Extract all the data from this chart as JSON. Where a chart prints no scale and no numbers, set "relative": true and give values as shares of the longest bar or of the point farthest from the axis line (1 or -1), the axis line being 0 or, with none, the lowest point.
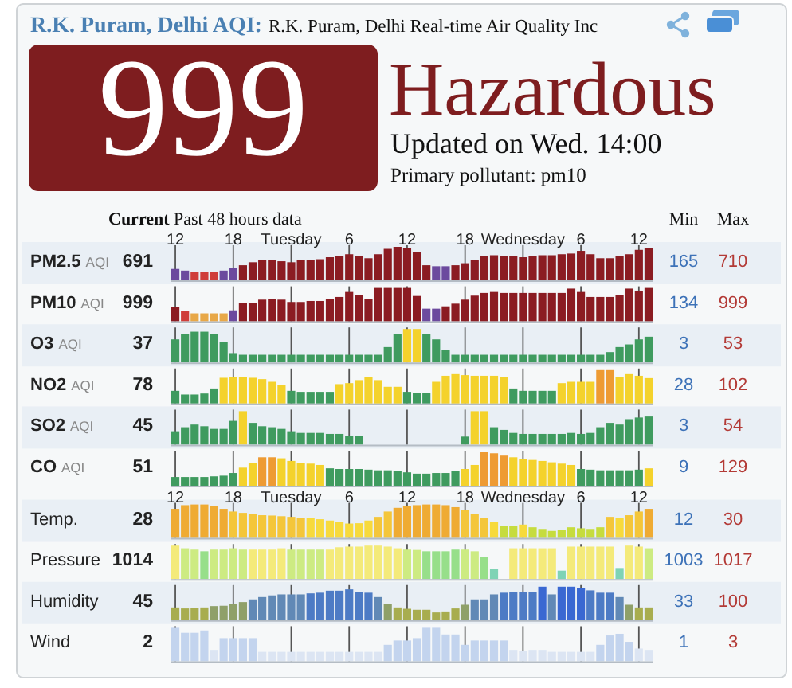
{
  "chart_data": [
    {
      "type": "other",
      "title": "R.K. Puram, Delhi AQI:",
      "subtitle": "R.K. Puram, Delhi Real-time Air Quality Inc",
      "color": "#7e1d1f",
      "annotations": [
        "999",
        "Hazardous",
        "Updated on Wed. 14:00",
        "Primary pollutant: pm10",
        "Current",
        "Past 48 hours data",
        "Min",
        "Max"
      ]
    },
    {
      "type": "bar",
      "relative": true,
      "title": "PM2.5 AQI",
      "grid": "x",
      "tick_labels": "x",
      "annotations": [
        "691",
        "165",
        "710"
      ],
      "categories": [
        "12",
        null,
        null,
        null,
        null,
        null,
        "18",
        null,
        null,
        null,
        null,
        null,
        "Tuesday",
        null,
        null,
        null,
        null,
        null,
        "6",
        null,
        null,
        null,
        null,
        null,
        "12",
        null,
        null,
        null,
        null,
        null,
        "18",
        null,
        null,
        null,
        null,
        null,
        "Wednesday",
        null,
        null,
        null,
        null,
        null,
        "6",
        null,
        null,
        null,
        null,
        null,
        "12",
        null
      ],
      "values": [
        0.34,
        0.29,
        0.26,
        0.26,
        0.26,
        0.29,
        0.38,
        0.45,
        0.54,
        0.6,
        0.6,
        0.57,
        0.54,
        0.6,
        0.6,
        0.63,
        0.69,
        0.72,
        0.78,
        0.72,
        0.66,
        0.78,
        0.94,
        1,
        0.97,
        0.85,
        0.45,
        0.42,
        0.42,
        0.45,
        0.51,
        0.6,
        0.72,
        0.75,
        0.72,
        0.72,
        0.69,
        0.72,
        0.75,
        0.75,
        0.78,
        0.8,
        0.88,
        0.78,
        0.66,
        0.66,
        0.72,
        0.78,
        0.91,
        0.97
      ],
      "colors": [
        "#6c4a9e",
        "#6c4a9e",
        "#cf3d3a",
        "#cf3d3a",
        "#cf3d3a",
        "#6c4a9e",
        "#6c4a9e",
        "#8b1c22",
        "#8b1c22",
        "#8b1c22",
        "#8b1c22",
        "#8b1c22",
        "#8b1c22",
        "#8b1c22",
        "#8b1c22",
        "#8b1c22",
        "#8b1c22",
        "#8b1c22",
        "#8b1c22",
        "#8b1c22",
        "#8b1c22",
        "#8b1c22",
        "#8b1c22",
        "#8b1c22",
        "#8b1c22",
        "#8b1c22",
        "#8b1c22",
        "#6c4a9e",
        "#6c4a9e",
        "#8b1c22",
        "#8b1c22",
        "#8b1c22",
        "#8b1c22",
        "#8b1c22",
        "#8b1c22",
        "#8b1c22",
        "#8b1c22",
        "#8b1c22",
        "#8b1c22",
        "#8b1c22",
        "#8b1c22",
        "#8b1c22",
        "#8b1c22",
        "#8b1c22",
        "#8b1c22",
        "#8b1c22",
        "#8b1c22",
        "#8b1c22",
        "#8b1c22",
        "#8b1c22"
      ]
    },
    {
      "type": "bar",
      "relative": true,
      "title": "PM10 AQI",
      "grid": "x",
      "annotations": [
        "999",
        "134",
        "999"
      ],
      "categories": [
        null,
        null,
        null,
        null,
        null,
        null,
        null,
        null,
        null,
        null,
        null,
        null,
        null,
        null,
        null,
        null,
        null,
        null,
        null,
        null,
        null,
        null,
        null,
        null,
        null,
        null,
        null,
        null,
        null,
        null,
        null,
        null,
        null,
        null,
        null,
        null,
        null,
        null,
        null,
        null,
        null,
        null,
        null,
        null,
        null,
        null,
        null,
        null,
        null,
        null
      ],
      "values": [
        0.42,
        0.3,
        0.24,
        0.24,
        0.24,
        0.24,
        0.33,
        0.55,
        0.55,
        0.65,
        0.68,
        0.65,
        0.58,
        0.58,
        0.61,
        0.61,
        0.68,
        0.73,
        0.88,
        0.8,
        0.68,
        1,
        1,
        1,
        1,
        0.76,
        0.38,
        0.38,
        0.45,
        0.53,
        0.65,
        0.77,
        0.85,
        0.88,
        0.85,
        0.85,
        0.85,
        0.85,
        0.85,
        0.85,
        0.85,
        0.98,
        0.88,
        0.73,
        0.73,
        0.73,
        0.8,
        0.98,
        0.92,
        1
      ],
      "colors": [
        "#8b1c22",
        "#cf3d3a",
        "#e8a848",
        "#e8a848",
        "#e8a848",
        "#e8a848",
        "#6c4a9e",
        "#8b1c22",
        "#8b1c22",
        "#8b1c22",
        "#8b1c22",
        "#8b1c22",
        "#8b1c22",
        "#8b1c22",
        "#8b1c22",
        "#8b1c22",
        "#8b1c22",
        "#8b1c22",
        "#8b1c22",
        "#8b1c22",
        "#8b1c22",
        "#8b1c22",
        "#8b1c22",
        "#8b1c22",
        "#8b1c22",
        "#8b1c22",
        "#6c4a9e",
        "#6c4a9e",
        "#8b1c22",
        "#8b1c22",
        "#8b1c22",
        "#8b1c22",
        "#8b1c22",
        "#8b1c22",
        "#8b1c22",
        "#8b1c22",
        "#8b1c22",
        "#8b1c22",
        "#8b1c22",
        "#8b1c22",
        "#8b1c22",
        "#8b1c22",
        "#8b1c22",
        "#8b1c22",
        "#8b1c22",
        "#8b1c22",
        "#8b1c22",
        "#8b1c22",
        "#8b1c22",
        "#8b1c22"
      ]
    },
    {
      "type": "bar",
      "relative": true,
      "title": "O3 AQI",
      "grid": "x",
      "annotations": [
        "37",
        "3",
        "53"
      ],
      "categories": [
        null,
        null,
        null,
        null,
        null,
        null,
        null,
        null,
        null,
        null,
        null,
        null,
        null,
        null,
        null,
        null,
        null,
        null,
        null,
        null,
        null,
        null,
        null,
        null,
        null,
        null,
        null,
        null,
        null,
        null,
        null,
        null,
        null,
        null,
        null,
        null,
        null,
        null,
        null,
        null,
        null,
        null,
        null,
        null,
        null,
        null,
        null,
        null,
        null,
        null
      ],
      "values": [
        0.69,
        0.85,
        0.92,
        0.92,
        0.85,
        0.62,
        0.28,
        0.23,
        0.23,
        0.23,
        0.23,
        0.23,
        0.23,
        0.23,
        0.23,
        0.23,
        0.23,
        0.23,
        0.23,
        0.23,
        0.23,
        0.23,
        0.46,
        0.85,
        1,
        1,
        0.85,
        0.69,
        0.38,
        0.23,
        0.23,
        0.23,
        0.23,
        0.23,
        0.23,
        0.23,
        0.23,
        0.23,
        0.23,
        0.23,
        0.23,
        0.23,
        0.23,
        0.23,
        0.23,
        0.31,
        0.46,
        0.54,
        0.69,
        0.77
      ],
      "colors": [
        "#3f9b5f",
        "#3f9b5f",
        "#3f9b5f",
        "#3f9b5f",
        "#3f9b5f",
        "#3f9b5f",
        "#3f9b5f",
        "#3f9b5f",
        "#3f9b5f",
        "#3f9b5f",
        "#3f9b5f",
        "#3f9b5f",
        "#3f9b5f",
        "#3f9b5f",
        "#3f9b5f",
        "#3f9b5f",
        "#3f9b5f",
        "#3f9b5f",
        "#3f9b5f",
        "#3f9b5f",
        "#3f9b5f",
        "#3f9b5f",
        "#3f9b5f",
        "#3f9b5f",
        "#f4d22c",
        "#f4d22c",
        "#3f9b5f",
        "#3f9b5f",
        "#3f9b5f",
        "#3f9b5f",
        "#3f9b5f",
        "#3f9b5f",
        "#3f9b5f",
        "#3f9b5f",
        "#3f9b5f",
        "#3f9b5f",
        "#3f9b5f",
        "#3f9b5f",
        "#3f9b5f",
        "#3f9b5f",
        "#3f9b5f",
        "#3f9b5f",
        "#3f9b5f",
        "#3f9b5f",
        "#3f9b5f",
        "#3f9b5f",
        "#3f9b5f",
        "#3f9b5f",
        "#3f9b5f",
        "#3f9b5f"
      ]
    },
    {
      "type": "bar",
      "relative": true,
      "title": "NO2 AQI",
      "grid": "x",
      "annotations": [
        "78",
        "28",
        "102"
      ],
      "categories": [
        null,
        null,
        null,
        null,
        null,
        null,
        null,
        null,
        null,
        null,
        null,
        null,
        null,
        null,
        null,
        null,
        null,
        null,
        null,
        null,
        null,
        null,
        null,
        null,
        null,
        null,
        null,
        null,
        null,
        null,
        null,
        null,
        null,
        null,
        null,
        null,
        null,
        null,
        null,
        null,
        null,
        null,
        null,
        null,
        null,
        null,
        null,
        null,
        null,
        null
      ],
      "values": [
        0.38,
        0.27,
        0.27,
        0.3,
        0.45,
        0.77,
        0.8,
        0.8,
        0.77,
        0.73,
        0.65,
        0.55,
        0.38,
        0.35,
        0.35,
        0.35,
        0.35,
        0.58,
        0.61,
        0.7,
        0.8,
        0.7,
        0.5,
        0.5,
        0.35,
        0.32,
        0.32,
        0.65,
        0.83,
        0.88,
        0.85,
        0.83,
        0.83,
        0.83,
        0.8,
        0.45,
        0.38,
        0.38,
        0.38,
        0.38,
        0.61,
        0.65,
        0.65,
        0.65,
        1,
        1,
        0.8,
        0.88,
        0.83,
        0.76
      ],
      "colors": [
        "#3f9b5f",
        "#3f9b5f",
        "#3f9b5f",
        "#3f9b5f",
        "#3f9b5f",
        "#f4d22c",
        "#f4d22c",
        "#f4d22c",
        "#f4d22c",
        "#f4d22c",
        "#f4d22c",
        "#f4d22c",
        "#3f9b5f",
        "#3f9b5f",
        "#3f9b5f",
        "#3f9b5f",
        "#3f9b5f",
        "#f4d22c",
        "#f4d22c",
        "#f4d22c",
        "#f4d22c",
        "#f4d22c",
        "#f4d22c",
        "#f4d22c",
        "#3f9b5f",
        "#3f9b5f",
        "#3f9b5f",
        "#f4d22c",
        "#f4d22c",
        "#f4d22c",
        "#f4d22c",
        "#f4d22c",
        "#f4d22c",
        "#f4d22c",
        "#f4d22c",
        "#3f9b5f",
        "#3f9b5f",
        "#3f9b5f",
        "#3f9b5f",
        "#3f9b5f",
        "#f4d22c",
        "#f4d22c",
        "#f4d22c",
        "#f4d22c",
        "#ee9b33",
        "#ee9b33",
        "#f4d22c",
        "#f4d22c",
        "#f4d22c",
        "#f4d22c"
      ]
    },
    {
      "type": "bar",
      "relative": true,
      "title": "SO2 AQI",
      "grid": "x",
      "annotations": [
        "45",
        "3",
        "54"
      ],
      "categories": [
        null,
        null,
        null,
        null,
        null,
        null,
        null,
        null,
        null,
        null,
        null,
        null,
        null,
        null,
        null,
        null,
        null,
        null,
        null,
        null,
        null,
        null,
        null,
        null,
        null,
        null,
        null,
        null,
        null,
        null,
        null,
        null,
        null,
        null,
        null,
        null,
        null,
        null,
        null,
        null,
        null,
        null,
        null,
        null,
        null,
        null,
        null,
        null,
        null,
        null
      ],
      "values": [
        0.4,
        0.52,
        0.6,
        0.55,
        0.47,
        0.47,
        0.71,
        1,
        0.65,
        0.55,
        0.52,
        0.47,
        0.4,
        0.35,
        0.35,
        0.35,
        0.32,
        0.32,
        0.27,
        0.27,
        null,
        null,
        null,
        null,
        null,
        null,
        null,
        null,
        null,
        null,
        0.24,
        1,
        1,
        0.52,
        0.44,
        0.35,
        0.32,
        0.32,
        0.32,
        0.32,
        0.32,
        0.35,
        0.32,
        0.35,
        0.52,
        0.65,
        0.6,
        0.76,
        0.81,
        0.84
      ],
      "colors": [
        "#3f9b5f",
        "#3f9b5f",
        "#3f9b5f",
        "#3f9b5f",
        "#3f9b5f",
        "#3f9b5f",
        "#3f9b5f",
        "#f4d22c",
        "#3f9b5f",
        "#3f9b5f",
        "#3f9b5f",
        "#3f9b5f",
        "#3f9b5f",
        "#3f9b5f",
        "#3f9b5f",
        "#3f9b5f",
        "#3f9b5f",
        "#3f9b5f",
        "#3f9b5f",
        "#3f9b5f",
        null,
        null,
        null,
        null,
        null,
        null,
        null,
        null,
        null,
        null,
        "#3f9b5f",
        "#f4d22c",
        "#f4d22c",
        "#3f9b5f",
        "#3f9b5f",
        "#3f9b5f",
        "#3f9b5f",
        "#3f9b5f",
        "#3f9b5f",
        "#3f9b5f",
        "#3f9b5f",
        "#3f9b5f",
        "#3f9b5f",
        "#3f9b5f",
        "#3f9b5f",
        "#3f9b5f",
        "#3f9b5f",
        "#3f9b5f",
        "#3f9b5f",
        "#3f9b5f"
      ]
    },
    {
      "type": "bar",
      "relative": true,
      "title": "CO AQI",
      "grid": "x",
      "annotations": [
        "51",
        "9",
        "129"
      ],
      "categories": [
        null,
        null,
        null,
        null,
        null,
        null,
        null,
        null,
        null,
        null,
        null,
        null,
        null,
        null,
        null,
        null,
        null,
        null,
        null,
        null,
        null,
        null,
        null,
        null,
        null,
        null,
        null,
        null,
        null,
        null,
        null,
        null,
        null,
        null,
        null,
        null,
        null,
        null,
        null,
        null,
        null,
        null,
        null,
        null,
        null,
        null,
        null,
        null,
        null,
        null
      ],
      "values": [
        0.26,
        0.26,
        0.26,
        0.26,
        0.28,
        0.3,
        0.38,
        0.54,
        0.69,
        0.85,
        0.85,
        0.82,
        0.74,
        0.69,
        0.66,
        0.62,
        0.52,
        0.5,
        0.5,
        0.5,
        0.48,
        0.46,
        0.46,
        0.44,
        0.4,
        0.36,
        0.36,
        0.38,
        0.38,
        0.44,
        0.5,
        0.62,
        1,
        0.97,
        0.9,
        0.85,
        0.8,
        0.77,
        0.74,
        0.7,
        0.66,
        0.62,
        0.5,
        0.48,
        0.46,
        0.46,
        0.46,
        0.46,
        0.48,
        0.52
      ],
      "colors": [
        "#3f9b5f",
        "#3f9b5f",
        "#3f9b5f",
        "#3f9b5f",
        "#3f9b5f",
        "#3f9b5f",
        "#3f9b5f",
        "#f4d22c",
        "#f4d22c",
        "#ee9b33",
        "#ee9b33",
        "#f4d22c",
        "#f4d22c",
        "#f4d22c",
        "#f4d22c",
        "#f4d22c",
        "#3f9b5f",
        "#3f9b5f",
        "#3f9b5f",
        "#3f9b5f",
        "#3f9b5f",
        "#3f9b5f",
        "#3f9b5f",
        "#3f9b5f",
        "#3f9b5f",
        "#3f9b5f",
        "#3f9b5f",
        "#3f9b5f",
        "#3f9b5f",
        "#3f9b5f",
        "#f4d22c",
        "#f4d22c",
        "#ee9b33",
        "#ee9b33",
        "#ee9b33",
        "#f4d22c",
        "#f4d22c",
        "#f4d22c",
        "#f4d22c",
        "#f4d22c",
        "#f4d22c",
        "#f4d22c",
        "#3f9b5f",
        "#3f9b5f",
        "#3f9b5f",
        "#3f9b5f",
        "#3f9b5f",
        "#3f9b5f",
        "#3f9b5f",
        "#f4d22c"
      ]
    },
    {
      "type": "bar",
      "relative": true,
      "title": "Temp.",
      "grid": "x",
      "tick_labels": "x",
      "annotations": [
        "28",
        "12",
        "30"
      ],
      "categories": [
        "12",
        null,
        null,
        null,
        null,
        null,
        "18",
        null,
        null,
        null,
        null,
        null,
        "Tuesday",
        null,
        null,
        null,
        null,
        null,
        "6",
        null,
        null,
        null,
        null,
        null,
        "12",
        null,
        null,
        null,
        null,
        null,
        "18",
        null,
        null,
        null,
        null,
        null,
        "Wednesday",
        null,
        null,
        null,
        null,
        null,
        "6",
        null,
        null,
        null,
        null,
        null,
        "12",
        null
      ],
      "values": [
        0.87,
        0.98,
        1,
        1,
        0.95,
        0.87,
        0.79,
        0.75,
        0.71,
        0.68,
        0.67,
        0.65,
        0.63,
        0.6,
        0.59,
        0.56,
        0.52,
        0.48,
        0.43,
        0.44,
        0.52,
        0.63,
        0.79,
        0.9,
        0.95,
        0.98,
        1,
        1,
        0.98,
        0.92,
        0.83,
        0.71,
        0.6,
        0.48,
        0.37,
        0.37,
        0.4,
        0.32,
        0.27,
        0.21,
        0.24,
        0.32,
        0.29,
        0.27,
        0.32,
        0.63,
        0.59,
        0.68,
        0.79,
        0.87
      ],
      "colors": [
        "#efab33",
        "#efab33",
        "#efab33",
        "#efab33",
        "#efab33",
        "#efab33",
        "#f4c63a",
        "#f4c63a",
        "#f4c63a",
        "#f4c63a",
        "#f4c63a",
        "#f4c63a",
        "#f4c63a",
        "#f4c63a",
        "#f7da3c",
        "#f7da3c",
        "#f7da3c",
        "#f7da3c",
        "#f7da3c",
        "#f7da3c",
        "#f7da3c",
        "#f4c63a",
        "#f4c63a",
        "#efab33",
        "#efab33",
        "#efab33",
        "#efab33",
        "#efab33",
        "#efab33",
        "#efab33",
        "#f4c63a",
        "#f4c63a",
        "#f4c63a",
        "#f7da3c",
        "#c6dc3e",
        "#c6dc3e",
        "#f7da3c",
        "#c6dc3e",
        "#c6dc3e",
        "#c6dc3e",
        "#c6dc3e",
        "#c6dc3e",
        "#c6dc3e",
        "#c6dc3e",
        "#c6dc3e",
        "#f4c63a",
        "#f7da3c",
        "#f4c63a",
        "#f4c63a",
        "#efab33"
      ]
    },
    {
      "type": "bar",
      "relative": true,
      "title": "Pressure",
      "grid": "x",
      "annotations": [
        "1014",
        "1003",
        "1017"
      ],
      "categories": [
        null,
        null,
        null,
        null,
        null,
        null,
        null,
        null,
        null,
        null,
        null,
        null,
        null,
        null,
        null,
        null,
        null,
        null,
        null,
        null,
        null,
        null,
        null,
        null,
        null,
        null,
        null,
        null,
        null,
        null,
        null,
        null,
        null,
        null,
        null,
        null,
        null,
        null,
        null,
        null,
        null,
        null,
        null,
        null,
        null,
        null,
        null,
        null,
        null,
        null
      ],
      "values": [
        1,
        0.92,
        0.88,
        0.83,
        0.88,
        0.88,
        0.92,
        0.88,
        0.88,
        0.88,
        0.88,
        0.92,
        0.88,
        0.88,
        0.88,
        0.88,
        0.88,
        0.95,
        0.97,
        0.97,
        1,
        1,
        0.97,
        0.92,
        0.88,
        0.87,
        0.83,
        0.83,
        0.83,
        0.88,
        0.88,
        0.83,
        0.67,
        0.3,
        null,
        0.92,
        0.92,
        0.92,
        0.92,
        0.92,
        0.25,
        0.97,
        0.97,
        0.97,
        0.97,
        0.97,
        0.33,
        1,
        0.97,
        0.92
      ],
      "colors": [
        "#f4ea7a",
        "#cdeb82",
        "#cdeb82",
        "#97df8a",
        "#cdeb82",
        "#cdeb82",
        "#cdeb82",
        "#cdeb82",
        "#f4ea7a",
        "#f4ea7a",
        "#f4ea7a",
        "#f4ea7a",
        "#cdeb82",
        "#cdeb82",
        "#cdeb82",
        "#cdeb82",
        "#f4ea7a",
        "#f4ea7a",
        "#f4ea7a",
        "#f4ea7a",
        "#f4ea7a",
        "#f4ea7a",
        "#f4ea7a",
        "#f4ea7a",
        "#cdeb82",
        "#cdeb82",
        "#97df8a",
        "#97df8a",
        "#97df8a",
        "#97df8a",
        "#cdeb82",
        "#cdeb82",
        "#97df8a",
        "#7fd3b5",
        null,
        "#f4ea7a",
        "#f4ea7a",
        "#f4ea7a",
        "#f4ea7a",
        "#f4ea7a",
        "#7fd3b5",
        "#f4ea7a",
        "#f4ea7a",
        "#f4ea7a",
        "#f4ea7a",
        "#f4ea7a",
        "#7fd3b5",
        "#f4ea7a",
        "#f4ea7a",
        "#cdeb82"
      ]
    },
    {
      "type": "bar",
      "relative": true,
      "title": "Humidity",
      "grid": "x",
      "annotations": [
        "45",
        "33",
        "100"
      ],
      "categories": [
        null,
        null,
        null,
        null,
        null,
        null,
        null,
        null,
        null,
        null,
        null,
        null,
        null,
        null,
        null,
        null,
        null,
        null,
        null,
        null,
        null,
        null,
        null,
        null,
        null,
        null,
        null,
        null,
        null,
        null,
        null,
        null,
        null,
        null,
        null,
        null,
        null,
        null,
        null,
        null,
        null,
        null,
        null,
        null,
        null,
        null,
        null,
        null,
        null,
        null
      ],
      "values": [
        0.38,
        0.35,
        0.37,
        0.38,
        0.42,
        0.43,
        0.49,
        0.54,
        0.62,
        0.69,
        0.74,
        0.77,
        0.77,
        0.77,
        0.8,
        0.82,
        0.88,
        0.88,
        0.92,
        0.85,
        0.82,
        0.69,
        0.49,
        0.38,
        0.34,
        0.31,
        0.31,
        0.23,
        0.26,
        0.35,
        0.46,
        0.62,
        0.62,
        0.77,
        0.82,
        0.85,
        0.85,
        0.85,
        1,
        0.77,
        1,
        1,
        0.97,
        0.89,
        0.82,
        0.82,
        0.69,
        0.46,
        0.38,
        0.38
      ],
      "colors": [
        "#a8ad4f",
        "#a8ad4f",
        "#a8ad4f",
        "#a8ad4f",
        "#8fa069",
        "#8fa069",
        "#8fa069",
        "#8fa069",
        "#6189b6",
        "#6189b6",
        "#6189b6",
        "#6189b6",
        "#6189b6",
        "#6189b6",
        "#4d7bc5",
        "#4d7bc5",
        "#4d7bc5",
        "#4d7bc5",
        "#4d7bc5",
        "#4d7bc5",
        "#4d7bc5",
        "#6189b6",
        "#8fa069",
        "#a8ad4f",
        "#a8ad4f",
        "#a8ad4f",
        "#a8ad4f",
        "#a8ad4f",
        "#a8ad4f",
        "#a8ad4f",
        "#8fa069",
        "#6189b6",
        "#6189b6",
        "#6189b6",
        "#4d7bc5",
        "#4d7bc5",
        "#4d7bc5",
        "#4d7bc5",
        "#3a68d2",
        "#6189b6",
        "#3a68d2",
        "#3a68d2",
        "#3a68d2",
        "#4d7bc5",
        "#4d7bc5",
        "#4d7bc5",
        "#6189b6",
        "#8fa069",
        "#a8ad4f",
        "#a8ad4f"
      ]
    },
    {
      "type": "bar",
      "relative": true,
      "title": "Wind",
      "grid": "x",
      "annotations": [
        "2",
        "1",
        "3"
      ],
      "categories": [
        null,
        null,
        null,
        null,
        null,
        null,
        null,
        null,
        null,
        null,
        null,
        null,
        null,
        null,
        null,
        null,
        null,
        null,
        null,
        null,
        null,
        null,
        null,
        null,
        null,
        null,
        null,
        null,
        null,
        null,
        null,
        null,
        null,
        null,
        null,
        null,
        null,
        null,
        null,
        null,
        null,
        null,
        null,
        null,
        null,
        null,
        null,
        null,
        null,
        null
      ],
      "values": [
        1,
        0.85,
        0.85,
        0.92,
        0.34,
        0.69,
        0.69,
        0.69,
        0.69,
        0.28,
        0.28,
        0.28,
        0.28,
        0.28,
        0.28,
        0.28,
        0.28,
        0.28,
        0.28,
        0.28,
        0.28,
        0.28,
        0.49,
        0.62,
        0.62,
        0.69,
        1,
        1,
        0.8,
        0.8,
        0.49,
        0.62,
        0.62,
        0.62,
        0.62,
        0.34,
        0.31,
        0.34,
        0.34,
        0.28,
        0.28,
        0.28,
        0.28,
        0.28,
        0.49,
        0.77,
        0.82,
        0.58,
        0.38,
        0.34
      ],
      "colors": [
        "#c3d4ee",
        "#c3d4ee",
        "#c3d4ee",
        "#c3d4ee",
        "#dce5f3",
        "#c3d4ee",
        "#c3d4ee",
        "#c3d4ee",
        "#c3d4ee",
        "#dce5f3",
        "#dce5f3",
        "#dce5f3",
        "#dce5f3",
        "#dce5f3",
        "#dce5f3",
        "#dce5f3",
        "#dce5f3",
        "#dce5f3",
        "#dce5f3",
        "#dce5f3",
        "#dce5f3",
        "#dce5f3",
        "#c3d4ee",
        "#c3d4ee",
        "#c3d4ee",
        "#c3d4ee",
        "#c3d4ee",
        "#c3d4ee",
        "#c3d4ee",
        "#c3d4ee",
        "#c3d4ee",
        "#c3d4ee",
        "#c3d4ee",
        "#c3d4ee",
        "#c3d4ee",
        "#dce5f3",
        "#dce5f3",
        "#dce5f3",
        "#dce5f3",
        "#dce5f3",
        "#dce5f3",
        "#dce5f3",
        "#dce5f3",
        "#dce5f3",
        "#c3d4ee",
        "#c3d4ee",
        "#c3d4ee",
        "#c3d4ee",
        "#dce5f3",
        "#dce5f3"
      ]
    }
  ]
}
